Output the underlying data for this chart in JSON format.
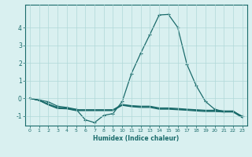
{
  "main_line": {
    "x": [
      0,
      1,
      2,
      3,
      4,
      5,
      6,
      7,
      8,
      9,
      10,
      11,
      12,
      13,
      14,
      15,
      16,
      17,
      18,
      19,
      20,
      21,
      22,
      23
    ],
    "y": [
      0.0,
      -0.1,
      -0.2,
      -0.45,
      -0.52,
      -0.62,
      -1.22,
      -1.38,
      -0.97,
      -0.87,
      -0.18,
      1.4,
      2.55,
      3.62,
      4.72,
      4.75,
      4.02,
      1.92,
      0.72,
      -0.18,
      -0.62,
      -0.75,
      -0.75,
      -1.02
    ]
  },
  "flat1": {
    "x": [
      0,
      1,
      2,
      3,
      4,
      5,
      6,
      7,
      8,
      9,
      10,
      11,
      12,
      13,
      14,
      15,
      16,
      17,
      18,
      19,
      20,
      21,
      22,
      23
    ],
    "y": [
      0.0,
      -0.12,
      -0.32,
      -0.52,
      -0.55,
      -0.65,
      -0.65,
      -0.65,
      -0.65,
      -0.65,
      -0.35,
      -0.42,
      -0.45,
      -0.45,
      -0.55,
      -0.55,
      -0.58,
      -0.62,
      -0.65,
      -0.68,
      -0.68,
      -0.72,
      -0.72,
      -1.05
    ]
  },
  "flat2": {
    "x": [
      0,
      1,
      2,
      3,
      4,
      5,
      6,
      7,
      8,
      9,
      10,
      11,
      12,
      13,
      14,
      15,
      16,
      17,
      18,
      19,
      20,
      21,
      22,
      23
    ],
    "y": [
      0.0,
      -0.12,
      -0.35,
      -0.55,
      -0.58,
      -0.68,
      -0.68,
      -0.68,
      -0.68,
      -0.68,
      -0.38,
      -0.45,
      -0.48,
      -0.48,
      -0.58,
      -0.58,
      -0.62,
      -0.65,
      -0.68,
      -0.72,
      -0.72,
      -0.75,
      -0.75,
      -1.08
    ]
  },
  "flat3": {
    "x": [
      0,
      1,
      2,
      3,
      4,
      5,
      6,
      7,
      8,
      9,
      10,
      11,
      12,
      13,
      14,
      15,
      16,
      17,
      18,
      19,
      20,
      21,
      22,
      23
    ],
    "y": [
      0.0,
      -0.12,
      -0.38,
      -0.58,
      -0.6,
      -0.7,
      -0.7,
      -0.7,
      -0.7,
      -0.7,
      -0.4,
      -0.48,
      -0.52,
      -0.52,
      -0.62,
      -0.62,
      -0.65,
      -0.68,
      -0.72,
      -0.75,
      -0.75,
      -0.78,
      -0.78,
      -1.1
    ]
  },
  "line_color": "#1a6b6b",
  "bg_color": "#d9f0f0",
  "grid_color": "#b0d8d8",
  "xlabel": "Humidex (Indice chaleur)",
  "xlim": [
    -0.5,
    23.5
  ],
  "ylim": [
    -1.55,
    5.3
  ],
  "yticks": [
    -1,
    0,
    1,
    2,
    3,
    4
  ],
  "xticks": [
    0,
    1,
    2,
    3,
    4,
    5,
    6,
    7,
    8,
    9,
    10,
    11,
    12,
    13,
    14,
    15,
    16,
    17,
    18,
    19,
    20,
    21,
    22,
    23
  ]
}
